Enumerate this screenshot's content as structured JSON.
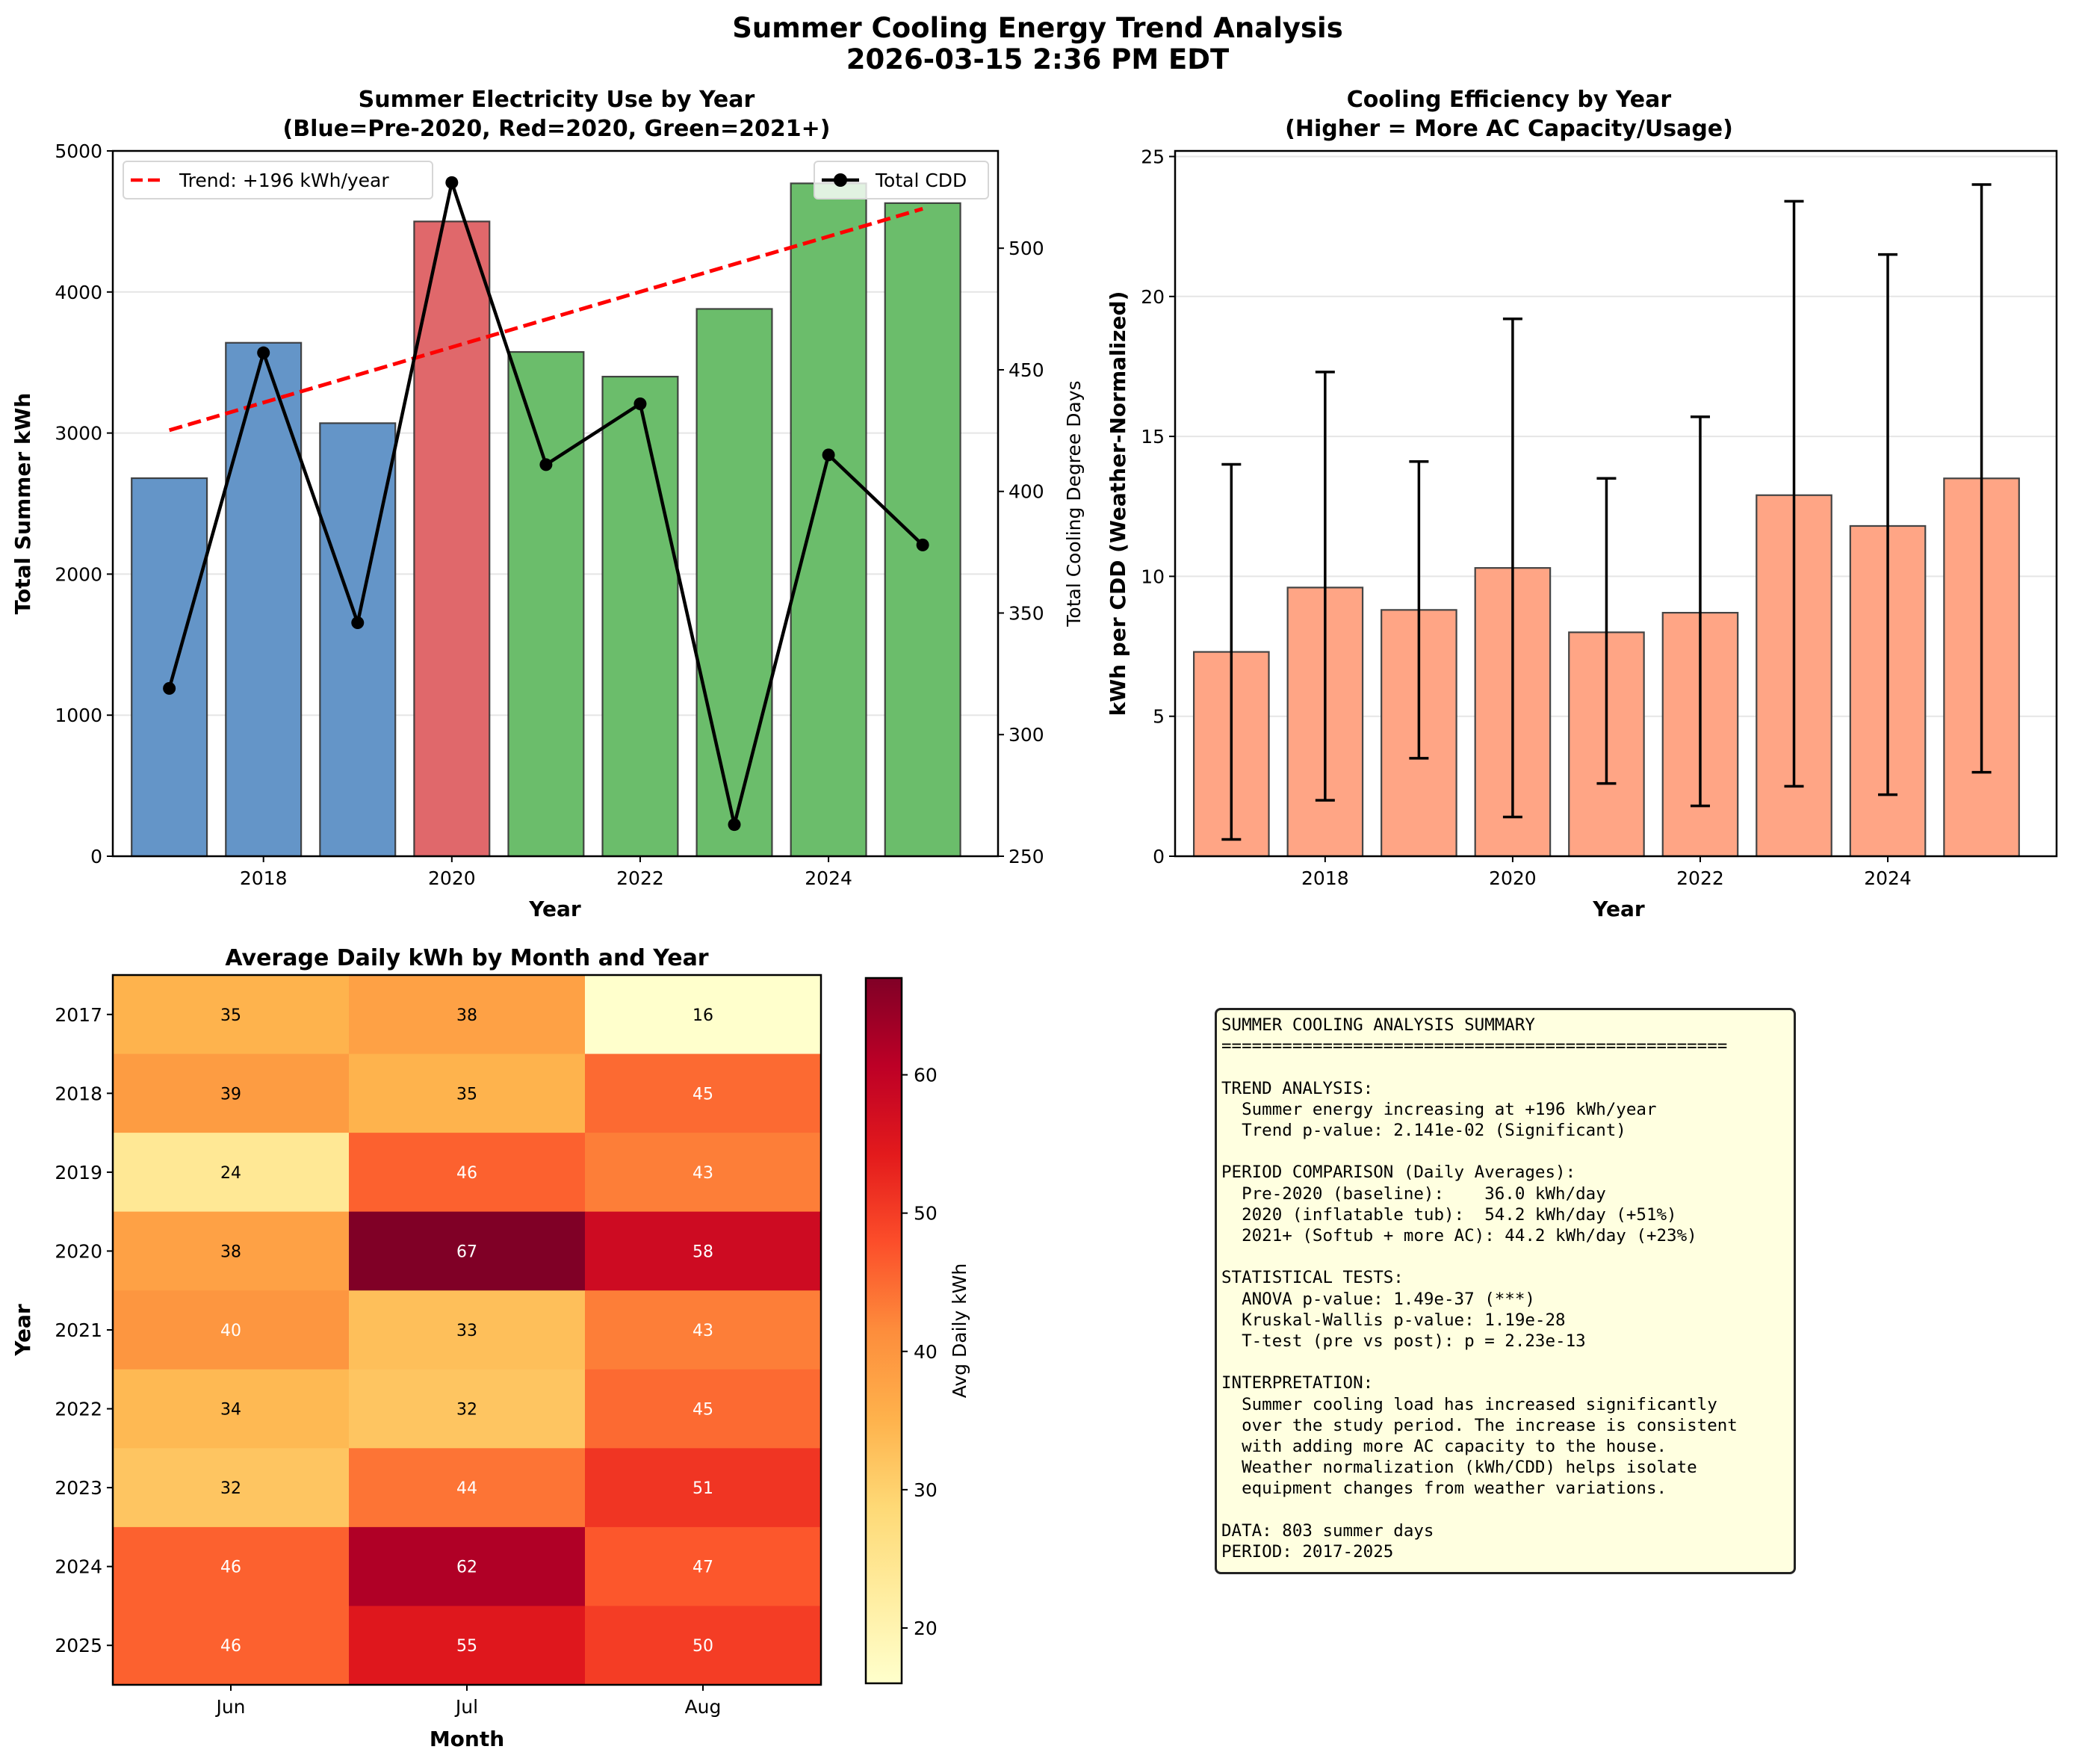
{
  "figure": {
    "title_line1": "Summer Cooling Energy Trend Analysis",
    "title_line2": "2026-03-15 2:36 PM EDT"
  },
  "chart_data": [
    {
      "id": "electricity",
      "type": "bar",
      "title_line1": "Summer Electricity Use by Year",
      "title_line2": "(Blue=Pre-2020, Red=2020, Green=2021+)",
      "xlabel": "Year",
      "ylabel": "Total Summer kWh",
      "y2label": "Total Cooling Degree Days",
      "categories": [
        2017,
        2018,
        2019,
        2020,
        2021,
        2022,
        2023,
        2024,
        2025
      ],
      "xticks": [
        2018,
        2020,
        2022,
        2024
      ],
      "xlim": [
        2016.4,
        2025.8
      ],
      "ylim": [
        0,
        5000
      ],
      "yticks": [
        0,
        1000,
        2000,
        3000,
        4000,
        5000
      ],
      "y2lim": [
        250,
        540
      ],
      "y2ticks": [
        250,
        300,
        350,
        400,
        450,
        500
      ],
      "grid": "y",
      "series": [
        {
          "name": "Total Summer kWh",
          "kind": "bar",
          "values": [
            2680,
            3640,
            3070,
            4500,
            3575,
            3400,
            3880,
            4770,
            4630
          ],
          "colors": [
            "#6495c8",
            "#6495c8",
            "#6495c8",
            "#e0686b",
            "#6bbd6b",
            "#6bbd6b",
            "#6bbd6b",
            "#6bbd6b",
            "#6bbd6b"
          ]
        },
        {
          "name": "Trend: +196 kWh/year",
          "kind": "dashed-line",
          "color": "#ff0000",
          "x": [
            2017,
            2025
          ],
          "values": [
            3020,
            4590
          ]
        },
        {
          "name": "Total CDD",
          "kind": "line-marker",
          "axis": "right",
          "color": "#000000",
          "values": [
            319,
            457,
            346,
            527,
            411,
            436,
            263,
            415,
            378
          ]
        }
      ],
      "legend": {
        "left": {
          "label": "Trend: +196 kWh/year",
          "placement": "top-left"
        },
        "right": {
          "label": "Total CDD",
          "placement": "top-right"
        }
      }
    },
    {
      "id": "efficiency",
      "type": "bar",
      "title_line1": "Cooling Efficiency by Year",
      "title_line2": "(Higher = More AC Capacity/Usage)",
      "xlabel": "Year",
      "ylabel": "kWh per CDD (Weather-Normalized)",
      "categories": [
        2017,
        2018,
        2019,
        2020,
        2021,
        2022,
        2023,
        2024,
        2025
      ],
      "xticks": [
        2018,
        2020,
        2022,
        2024
      ],
      "xlim": [
        2016.4,
        2025.8
      ],
      "ylim": [
        0,
        25.2
      ],
      "yticks": [
        0,
        5,
        10,
        15,
        20,
        25
      ],
      "grid": "y",
      "color": "#ffa585",
      "values": [
        7.3,
        9.6,
        8.8,
        10.3,
        8.0,
        8.7,
        12.9,
        11.8,
        13.5
      ],
      "error_low": [
        0.6,
        2.0,
        3.5,
        1.4,
        2.6,
        1.8,
        2.5,
        2.2,
        3.0
      ],
      "error_high": [
        14.0,
        17.3,
        14.1,
        19.2,
        13.5,
        15.7,
        23.4,
        21.5,
        24.0
      ]
    },
    {
      "id": "heatmap",
      "type": "heatmap",
      "title": "Average Daily kWh by Month and Year",
      "xlabel": "Month",
      "ylabel": "Year",
      "columns": [
        "Jun",
        "Jul",
        "Aug"
      ],
      "rows": [
        "2017",
        "2018",
        "2019",
        "2020",
        "2021",
        "2022",
        "2023",
        "2024",
        "2025"
      ],
      "values": [
        [
          35,
          38,
          16
        ],
        [
          39,
          35,
          45
        ],
        [
          24,
          46,
          43
        ],
        [
          38,
          67,
          58
        ],
        [
          40,
          33,
          43
        ],
        [
          34,
          32,
          45
        ],
        [
          32,
          44,
          51
        ],
        [
          46,
          62,
          47
        ],
        [
          46,
          55,
          50
        ]
      ],
      "colormap": "YlOrRd",
      "vmin": 16,
      "vmax": 67,
      "colorbar": {
        "label": "Avg Daily kWh",
        "ticks": [
          20,
          30,
          40,
          50,
          60
        ]
      }
    }
  ],
  "summary": {
    "lines": [
      "SUMMER COOLING ANALYSIS SUMMARY",
      "==================================================",
      "",
      "TREND ANALYSIS:",
      "  Summer energy increasing at +196 kWh/year",
      "  Trend p-value: 2.141e-02 (Significant)",
      "",
      "PERIOD COMPARISON (Daily Averages):",
      "  Pre-2020 (baseline):    36.0 kWh/day",
      "  2020 (inflatable tub):  54.2 kWh/day (+51%)",
      "  2021+ (Softub + more AC): 44.2 kWh/day (+23%)",
      "",
      "STATISTICAL TESTS:",
      "  ANOVA p-value: 1.49e-37 (***)",
      "  Kruskal-Wallis p-value: 1.19e-28",
      "  T-test (pre vs post): p = 2.23e-13",
      "",
      "INTERPRETATION:",
      "  Summer cooling load has increased significantly",
      "  over the study period. The increase is consistent",
      "  with adding more AC capacity to the house.",
      "  Weather normalization (kWh/CDD) helps isolate",
      "  equipment changes from weather variations.",
      "",
      "DATA: 803 summer days",
      "PERIOD: 2017-2025"
    ]
  }
}
